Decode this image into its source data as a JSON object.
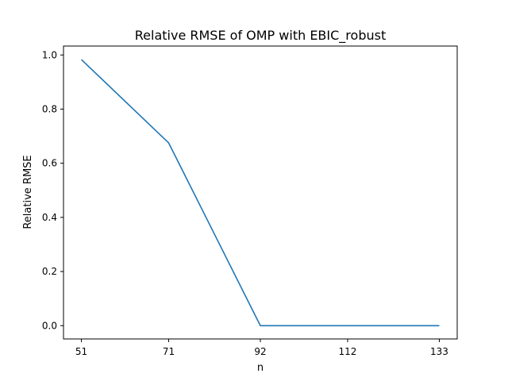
{
  "chart_data": {
    "type": "line",
    "title": "Relative RMSE of OMP with EBIC_robust",
    "xlabel": "n",
    "ylabel": "Relative RMSE",
    "x": [
      51,
      71,
      92,
      112,
      133
    ],
    "xticks": [
      51,
      71,
      92,
      112,
      133
    ],
    "xtick_labels": [
      "51",
      "71",
      "92",
      "112",
      "133"
    ],
    "yticks": [
      0.0,
      0.2,
      0.4,
      0.6,
      0.8,
      1.0
    ],
    "ytick_labels": [
      "0.0",
      "0.2",
      "0.4",
      "0.6",
      "0.8",
      "1.0"
    ],
    "xlim": [
      46.9,
      137.1
    ],
    "ylim": [
      -0.049,
      1.033
    ],
    "grid": false,
    "series": [
      {
        "values": [
          0.983,
          0.675,
          0.0,
          0.0,
          0.0
        ],
        "color": "#1f77b4"
      }
    ]
  }
}
